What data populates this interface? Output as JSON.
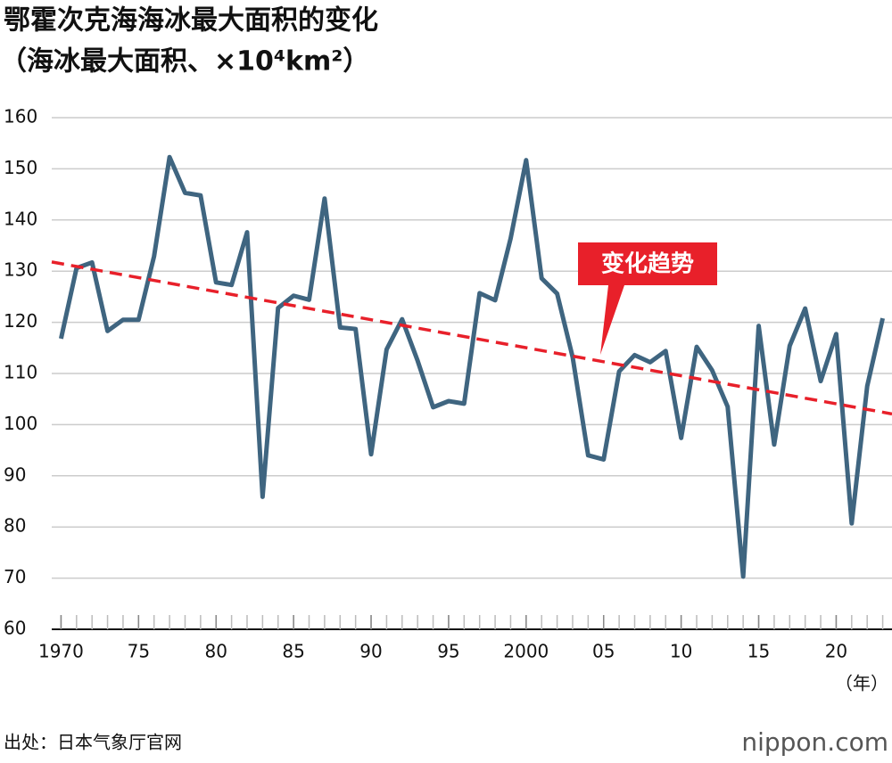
{
  "chart_data": {
    "type": "line",
    "title": "鄂霍次克海海冰最大面积的变化",
    "subtitle": "（海冰最大面积、×10⁴km²）",
    "x_label": "（年）",
    "x": [
      1970,
      1971,
      1972,
      1973,
      1974,
      1975,
      1976,
      1977,
      1978,
      1979,
      1980,
      1981,
      1982,
      1983,
      1984,
      1985,
      1986,
      1987,
      1988,
      1989,
      1990,
      1991,
      1992,
      1993,
      1994,
      1995,
      1996,
      1997,
      1998,
      1999,
      2000,
      2001,
      2002,
      2003,
      2004,
      2005,
      2006,
      2007,
      2008,
      2009,
      2010,
      2011,
      2012,
      2013,
      2014,
      2015,
      2016,
      2017,
      2018,
      2019,
      2020,
      2021,
      2022,
      2023
    ],
    "series": [
      {
        "name": "海冰最大面积",
        "color": "#3f6580",
        "values": [
          116.8,
          130.6,
          131.7,
          118.3,
          120.5,
          120.5,
          132.9,
          152.3,
          145.3,
          144.8,
          127.8,
          127.3,
          137.6,
          85.9,
          122.8,
          125.2,
          124.4,
          144.2,
          119.0,
          118.7,
          94.2,
          114.7,
          120.6,
          112.5,
          103.4,
          104.6,
          104.1,
          125.7,
          124.3,
          136.4,
          151.7,
          128.6,
          125.6,
          113.2,
          94.0,
          93.2,
          110.4,
          113.6,
          112.2,
          114.4,
          97.4,
          115.2,
          110.6,
          103.5,
          70.3,
          119.3,
          96.1,
          115.4,
          122.7,
          108.5,
          117.7,
          80.7,
          107.5,
          120.8
        ]
      }
    ],
    "trend": {
      "name": "变化趋势",
      "color": "#e8202a",
      "x": [
        1969.4,
        2023.6
      ],
      "values": [
        131.8,
        102.1
      ]
    },
    "xlim": [
      1969.4,
      2023.6
    ],
    "xticks": [
      1970,
      {
        "value": 1975,
        "label": "75"
      },
      {
        "value": 1980,
        "label": "80"
      },
      {
        "value": 1985,
        "label": "85"
      },
      {
        "value": 1990,
        "label": "90"
      },
      {
        "value": 1995,
        "label": "95"
      },
      2000,
      {
        "value": 2005,
        "label": "05"
      },
      {
        "value": 2010,
        "label": "10"
      },
      {
        "value": 2015,
        "label": "15"
      },
      {
        "value": 2020,
        "label": "20"
      }
    ],
    "ylim": [
      60,
      160
    ],
    "yticks": [
      60,
      70,
      80,
      90,
      100,
      110,
      120,
      130,
      140,
      150,
      160
    ],
    "grid": true,
    "source": "出处：日本气象厅官网",
    "logo": "nippon.com"
  }
}
